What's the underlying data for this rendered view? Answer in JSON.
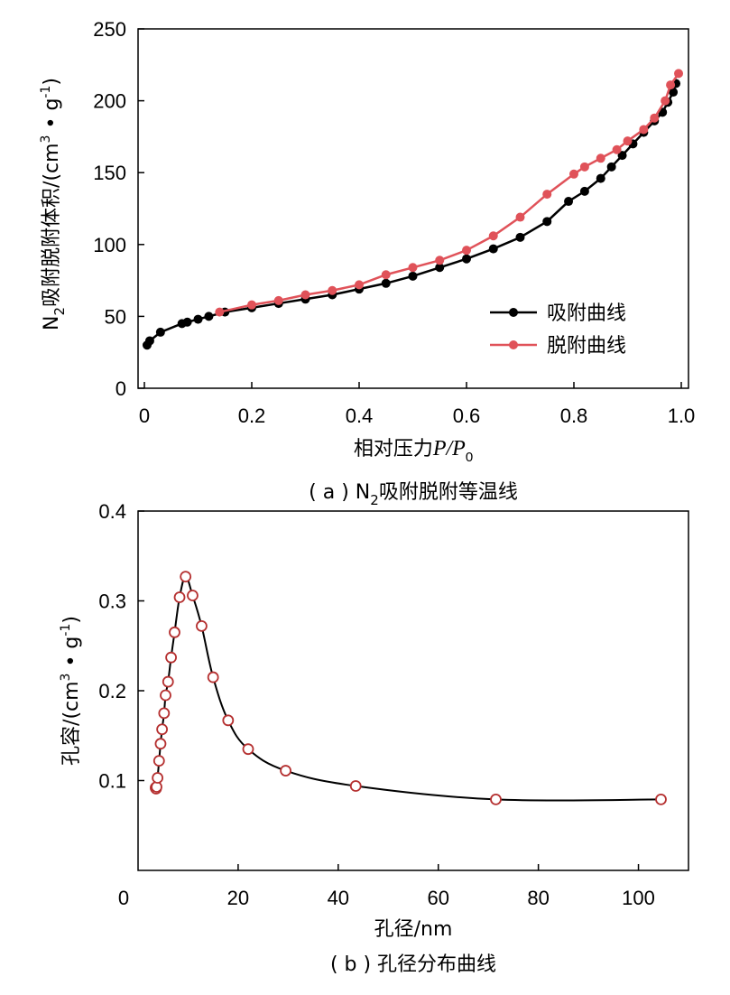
{
  "chart_data": [
    {
      "type": "line",
      "caption_prefix": "( a ) N",
      "caption_sub": "2",
      "caption_suffix": "吸附脱附等温线",
      "xlabel_prefix": "相对压力",
      "xlabel_p": "P/P",
      "xlabel_sub": "0",
      "ylabel_prefix": "N",
      "ylabel_sub": "2",
      "ylabel_main": "吸附脱附体积/(cm",
      "ylabel_sup1": "3",
      "ylabel_mid": " • g",
      "ylabel_sup2": "-1",
      "ylabel_end": ")",
      "xlim": [
        0,
        1.0
      ],
      "ylim": [
        0,
        250
      ],
      "xticks": [
        "0",
        "0.2",
        "0.4",
        "0.6",
        "0.8",
        "1.0"
      ],
      "yticks": [
        "0",
        "50",
        "100",
        "150",
        "200",
        "250"
      ],
      "legend_position": "bottom-right",
      "series": [
        {
          "name": "吸附曲线",
          "color": "#000000",
          "x": [
            0.005,
            0.01,
            0.03,
            0.07,
            0.08,
            0.1,
            0.12,
            0.15,
            0.2,
            0.25,
            0.3,
            0.35,
            0.4,
            0.45,
            0.5,
            0.55,
            0.6,
            0.65,
            0.7,
            0.75,
            0.79,
            0.82,
            0.85,
            0.87,
            0.89,
            0.91,
            0.93,
            0.95,
            0.965,
            0.975,
            0.985,
            0.99
          ],
          "y": [
            30,
            33,
            39,
            45,
            46,
            48,
            50,
            53,
            56,
            59,
            62,
            65,
            69,
            73,
            78,
            84,
            90,
            97,
            105,
            116,
            130,
            137,
            146,
            154,
            162,
            170,
            178,
            186,
            192,
            199,
            206,
            212
          ]
        },
        {
          "name": "脱附曲线",
          "color": "#e05259",
          "x": [
            0.14,
            0.2,
            0.25,
            0.3,
            0.35,
            0.4,
            0.45,
            0.5,
            0.55,
            0.6,
            0.65,
            0.7,
            0.75,
            0.8,
            0.82,
            0.85,
            0.88,
            0.9,
            0.93,
            0.95,
            0.97,
            0.98,
            0.995
          ],
          "y": [
            53,
            58,
            61,
            65,
            68,
            72,
            79,
            84,
            89,
            96,
            106,
            119,
            135,
            149,
            154,
            160,
            166,
            172,
            180,
            188,
            200,
            211,
            219
          ]
        }
      ]
    },
    {
      "type": "line",
      "caption": "( b ) 孔径分布曲线",
      "xlabel": "孔径/nm",
      "ylabel_main": "孔容/(cm",
      "ylabel_sup1": "3",
      "ylabel_mid": " • g",
      "ylabel_sup2": "-1",
      "ylabel_end": ")",
      "xlim": [
        0,
        110
      ],
      "ylim": [
        0,
        0.4
      ],
      "xticks": [
        "0",
        "20",
        "40",
        "60",
        "80",
        "100"
      ],
      "yticks": [
        "0.1",
        "0.2",
        "0.3",
        "0.4"
      ],
      "marker_color": "#b53030",
      "x": [
        3.5,
        3.6,
        3.7,
        3.9,
        4.2,
        4.5,
        4.8,
        5.2,
        5.5,
        6.0,
        6.6,
        7.3,
        8.3,
        9.5,
        10.9,
        12.7,
        15.0,
        18.0,
        22.0,
        29.5,
        43.5,
        71.5,
        104.5
      ],
      "y": [
        0.092,
        0.091,
        0.093,
        0.103,
        0.122,
        0.141,
        0.157,
        0.175,
        0.195,
        0.21,
        0.237,
        0.265,
        0.304,
        0.327,
        0.306,
        0.272,
        0.215,
        0.167,
        0.135,
        0.111,
        0.094,
        0.079,
        0.079
      ]
    }
  ]
}
